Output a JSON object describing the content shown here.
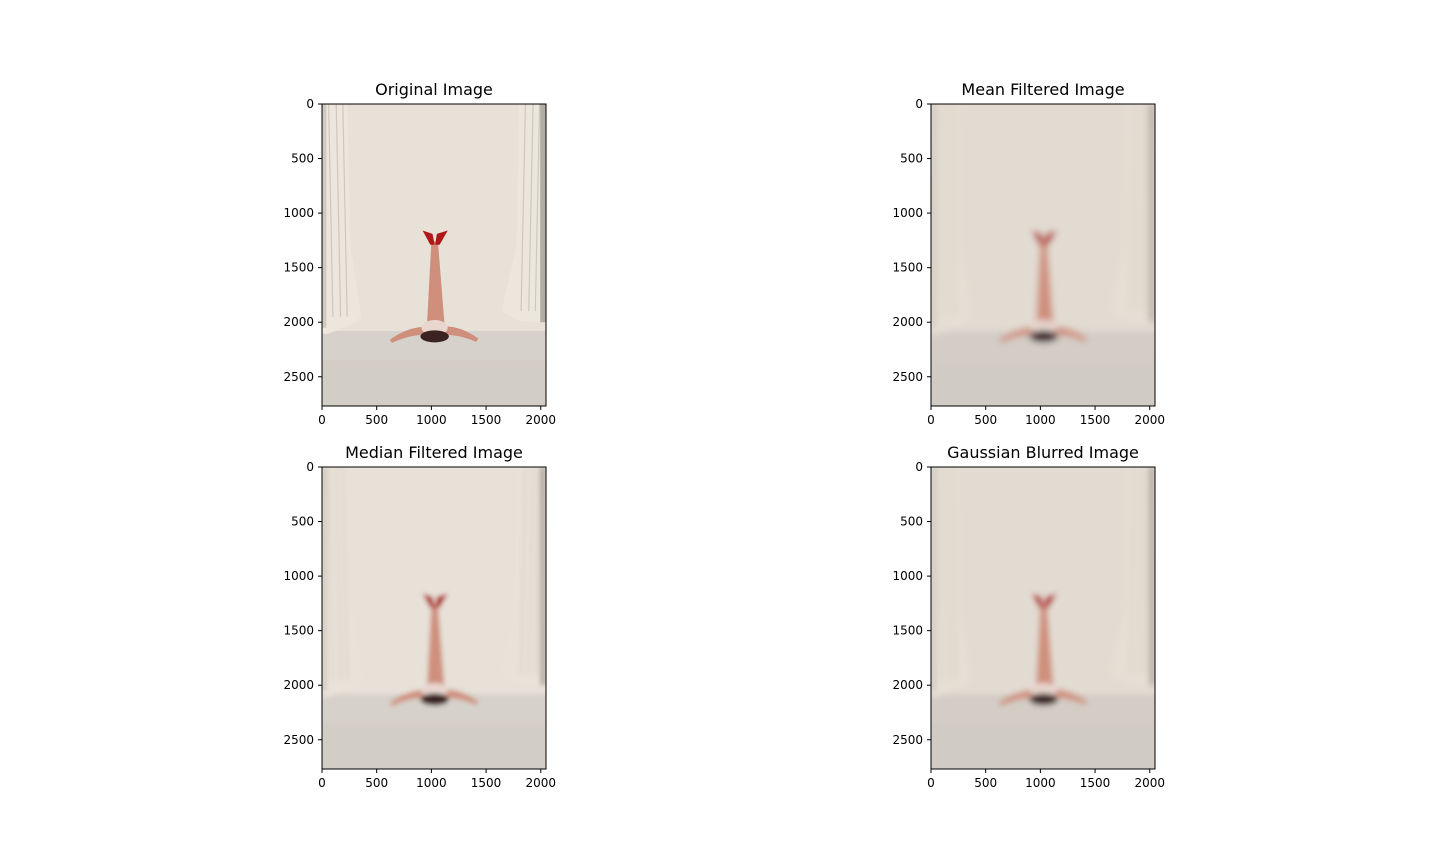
{
  "chart_data": [
    {
      "type": "image",
      "title": "Original Image",
      "image_size": [
        2048,
        2768
      ],
      "xlim": [
        0,
        2048
      ],
      "ylim": [
        2768,
        0
      ],
      "xticks": [
        0,
        500,
        1000,
        1500,
        2000
      ],
      "yticks": [
        0,
        500,
        1000,
        1500,
        2000,
        2500
      ],
      "blur": 0,
      "colors": {
        "wall": "#e7e1d8",
        "floor": "#d6d1ca",
        "curtain": "#ece6dc",
        "skin": "#cf8f7c",
        "shoes": "#b01818",
        "hair": "#3a2320"
      }
    },
    {
      "type": "image",
      "title": "Mean Filtered Image",
      "image_size": [
        2048,
        2768
      ],
      "xlim": [
        0,
        2048
      ],
      "ylim": [
        2768,
        0
      ],
      "xticks": [
        0,
        500,
        1000,
        1500,
        2000
      ],
      "yticks": [
        0,
        500,
        1000,
        1500,
        2000,
        2500
      ],
      "blur": 3.5,
      "colors": {
        "wall": "#e2dbd1",
        "floor": "#d3cdc6",
        "curtain": "#e6dfd4",
        "skin": "#cf8f7c",
        "shoes": "#b01818",
        "hair": "#3a2320"
      }
    },
    {
      "type": "image",
      "title": "Median Filtered Image",
      "image_size": [
        2048,
        2768
      ],
      "xlim": [
        0,
        2048
      ],
      "ylim": [
        2768,
        0
      ],
      "xticks": [
        0,
        500,
        1000,
        1500,
        2000
      ],
      "yticks": [
        0,
        500,
        1000,
        1500,
        2000,
        2500
      ],
      "blur": 2.5,
      "colors": {
        "wall": "#e7e1d8",
        "floor": "#d6d1ca",
        "curtain": "#e9e2d8",
        "skin": "#cf8f7c",
        "shoes": "#b01818",
        "hair": "#3a2320"
      }
    },
    {
      "type": "image",
      "title": "Gaussian Blurred Image",
      "image_size": [
        2048,
        2768
      ],
      "xlim": [
        0,
        2048
      ],
      "ylim": [
        2768,
        0
      ],
      "xticks": [
        0,
        500,
        1000,
        1500,
        2000
      ],
      "yticks": [
        0,
        500,
        1000,
        1500,
        2000,
        2500
      ],
      "blur": 3,
      "colors": {
        "wall": "#e2dbd1",
        "floor": "#d3cdc6",
        "curtain": "#e6dfd4",
        "skin": "#cf8f7c",
        "shoes": "#b01818",
        "hair": "#3a2320"
      }
    }
  ]
}
